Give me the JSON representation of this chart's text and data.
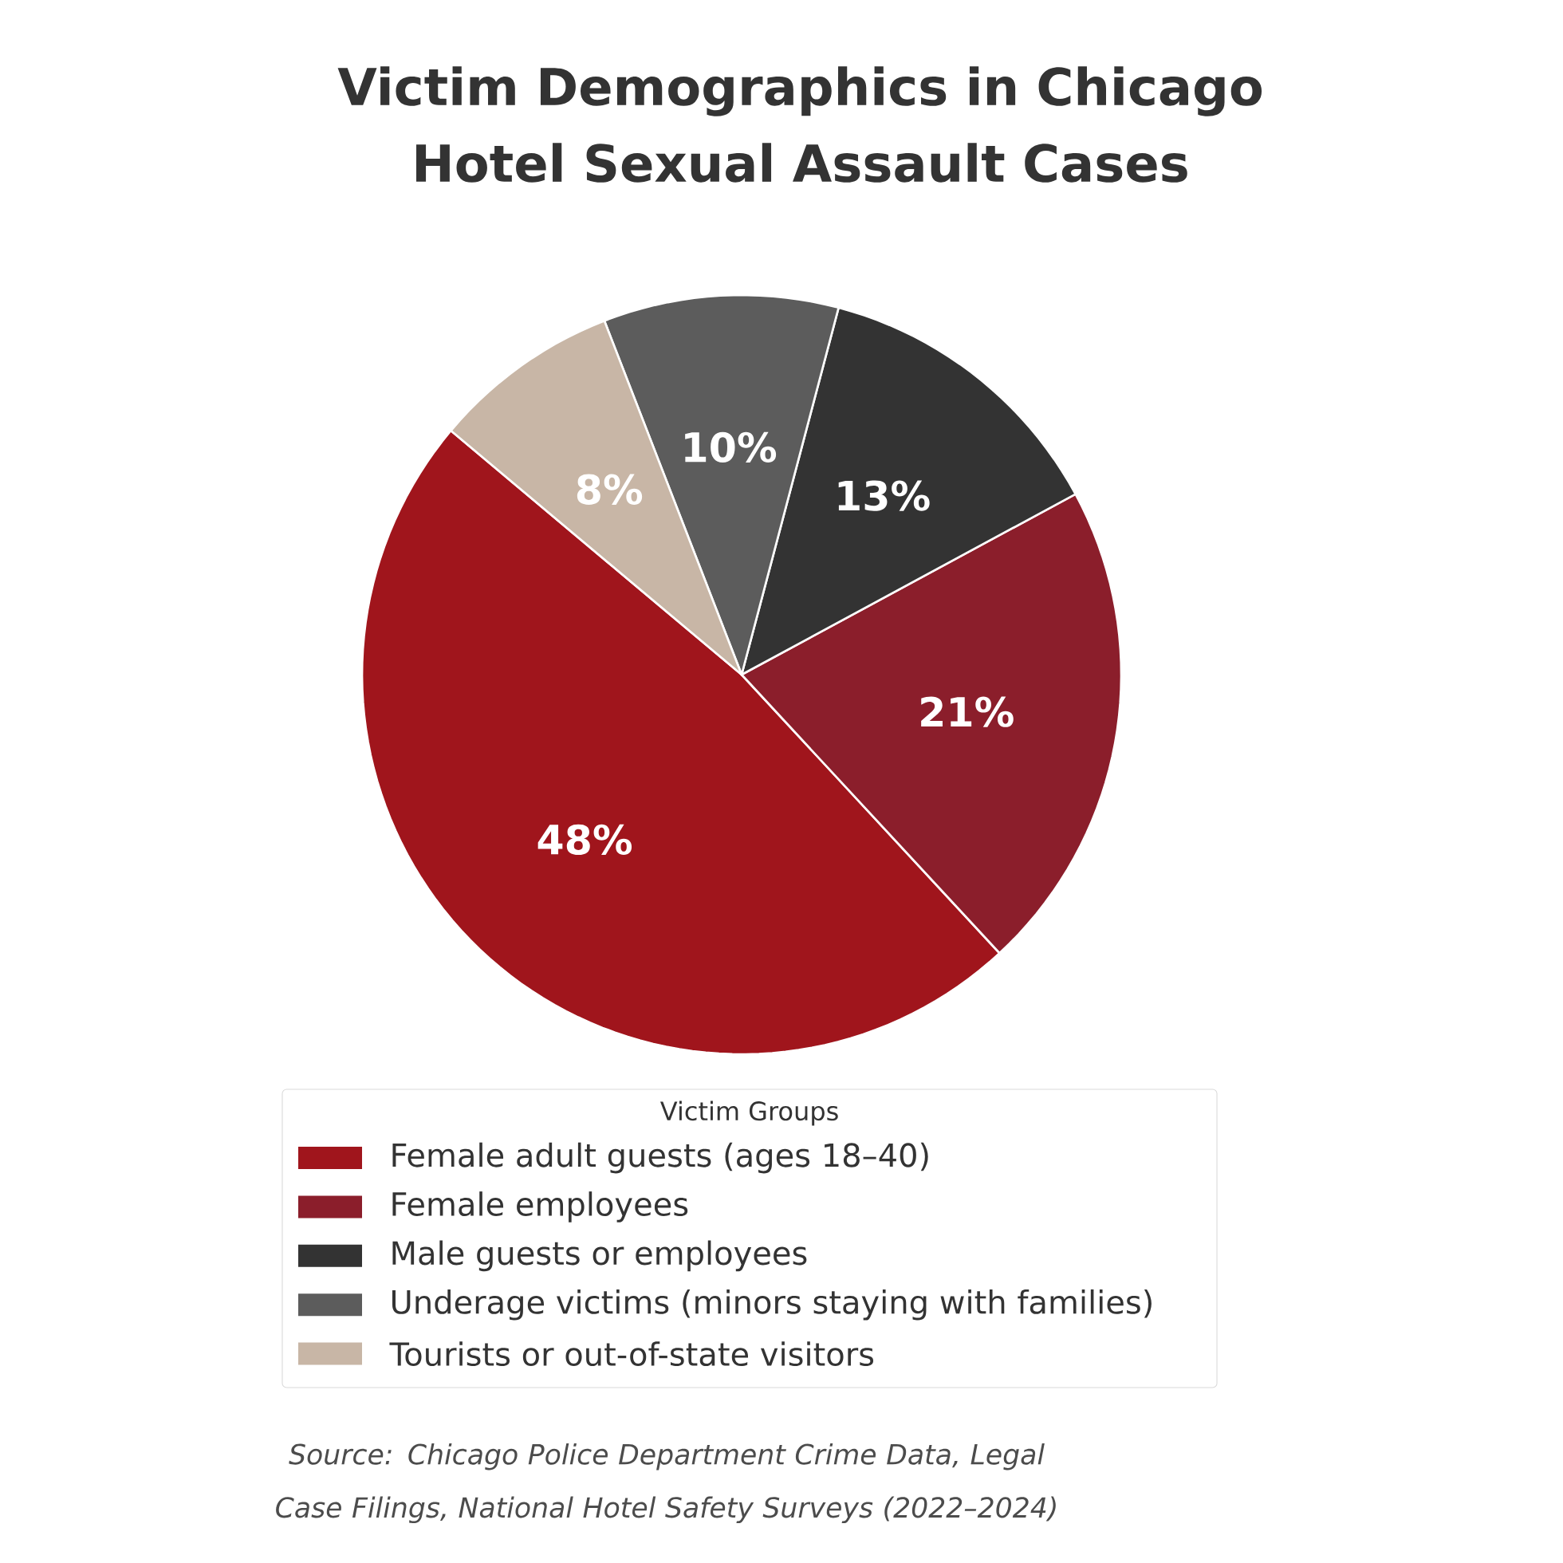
{
  "chart_data": {
    "type": "pie",
    "title": "Victim Demographics in Chicago Hotel Sexual Assault Cases",
    "categories": [
      "Female adult guests (ages 18–40)",
      "Female employees",
      "Male guests or employees",
      "Underage victims (minors staying with families)",
      "Tourists or out-of-state visitors"
    ],
    "values": [
      48,
      21,
      13,
      10,
      8
    ],
    "colors": [
      "#a0151c",
      "#8b1e2b",
      "#333333",
      "#5c5c5c",
      "#c8b6a6"
    ],
    "value_labels": [
      "48%",
      "21%",
      "13%",
      "10%",
      "8%"
    ],
    "legend": "bottom",
    "legend_title": "Victim Groups",
    "annotations": [
      "Source: Chicago Police Department Crime Data, Legal Case Filings, National Hotel Safety Surveys (2022–2024)"
    ]
  }
}
